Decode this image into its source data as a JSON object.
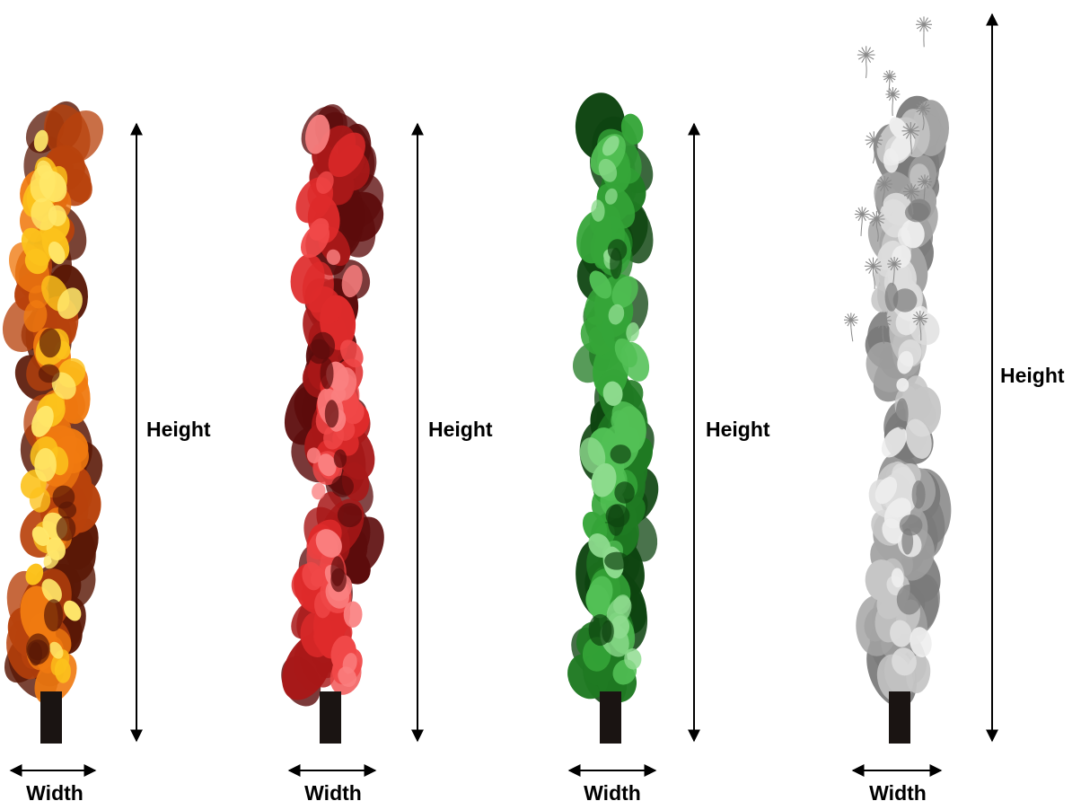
{
  "labels": {
    "height": "Height",
    "width": "Width"
  },
  "effects": [
    {
      "name": "fire",
      "colors": [
        "#5a1806",
        "#b8420c",
        "#f07a10",
        "#fcc21c",
        "#ffe76a"
      ]
    },
    {
      "name": "red",
      "colors": [
        "#5c0c0c",
        "#a81818",
        "#de2a2a",
        "#f04848",
        "#fa8080"
      ]
    },
    {
      "name": "green",
      "colors": [
        "#0e4410",
        "#1f7a22",
        "#35a538",
        "#52c055",
        "#8edb8e"
      ]
    },
    {
      "name": "smoke",
      "colors": [
        "#7a7a7a",
        "#a4a4a4",
        "#c6c6c6",
        "#dddddd",
        "#eeeeee"
      ]
    }
  ],
  "colors": {
    "nozzle": "#1a1412",
    "arrow": "#000000",
    "confetti": "#8a8a8a"
  }
}
